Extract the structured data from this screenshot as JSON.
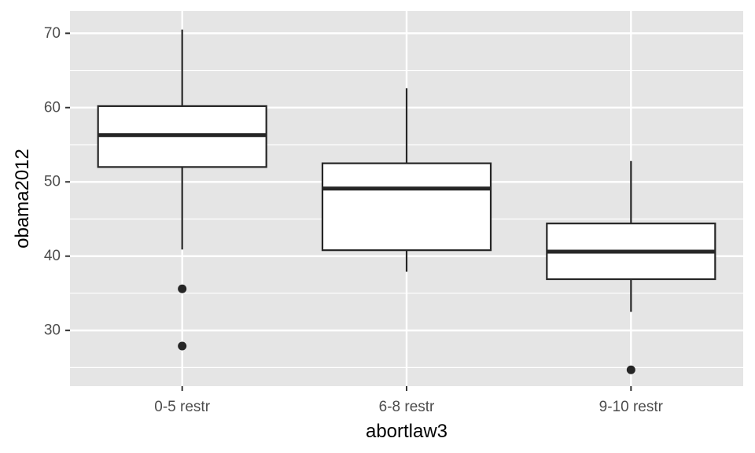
{
  "chart_data": {
    "type": "boxplot",
    "xlabel": "abortlaw3",
    "ylabel": "obama2012",
    "ylim": [
      22.5,
      73
    ],
    "yticks": [
      30,
      40,
      50,
      60,
      70
    ],
    "grid": true,
    "background": "#e5e5e5",
    "box_fill": "#ffffff",
    "line_color": "#262626",
    "categories": [
      "0-5 restr",
      "6-8 restr",
      "9-10 restr"
    ],
    "boxes": [
      {
        "category": "0-5 restr",
        "whisker_low": 40.9,
        "q1": 52.0,
        "median": 56.3,
        "q3": 60.2,
        "whisker_high": 70.5,
        "outliers": [
          35.6,
          27.9
        ]
      },
      {
        "category": "6-8 restr",
        "whisker_low": 37.9,
        "q1": 40.8,
        "median": 49.1,
        "q3": 52.5,
        "whisker_high": 62.6,
        "outliers": []
      },
      {
        "category": "9-10 restr",
        "whisker_low": 32.5,
        "q1": 36.9,
        "median": 40.6,
        "q3": 44.4,
        "whisker_high": 52.8,
        "outliers": [
          24.7
        ]
      }
    ]
  }
}
